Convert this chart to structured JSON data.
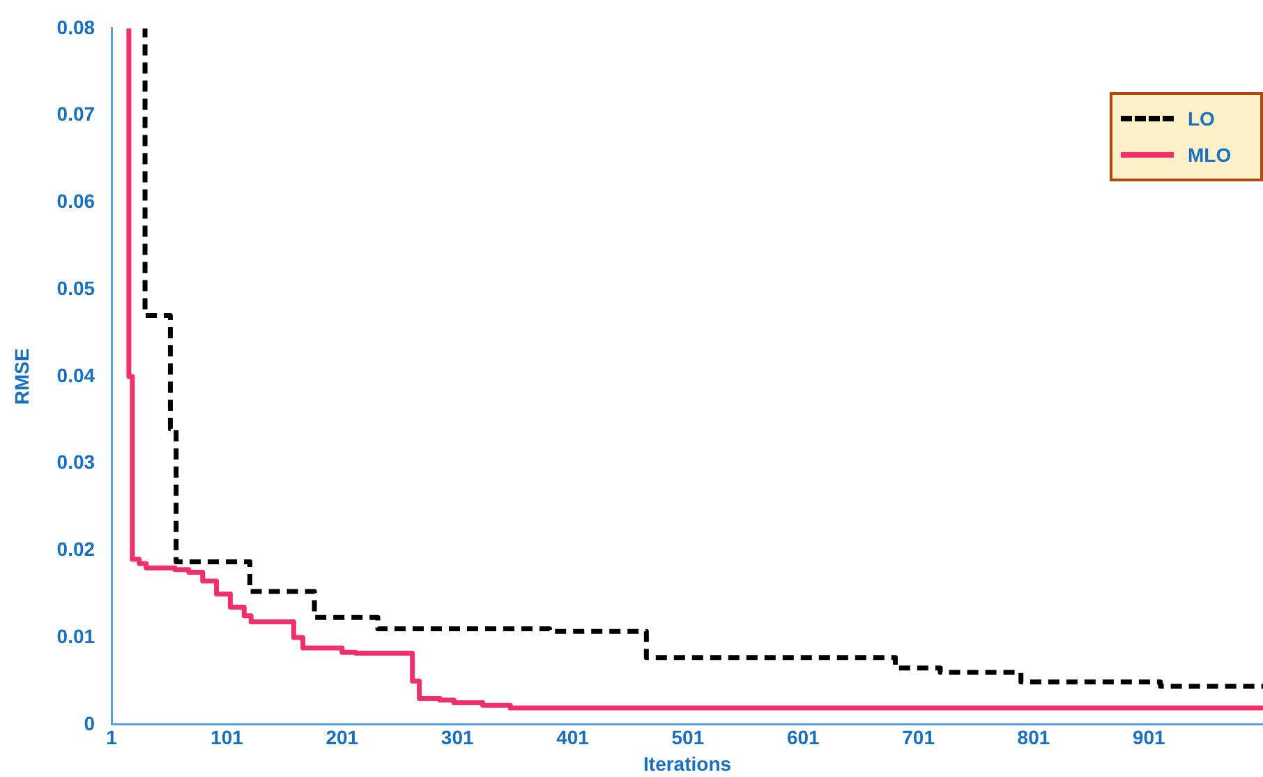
{
  "chart_data": {
    "type": "step",
    "xlabel": "Iterations",
    "ylabel": "RMSE",
    "xlim": [
      1,
      1000
    ],
    "xticks": [
      1,
      101,
      201,
      301,
      401,
      501,
      601,
      701,
      801,
      901
    ],
    "ylim": [
      0,
      0.08
    ],
    "yticks": [
      0,
      0.01,
      0.02,
      0.03,
      0.04,
      0.05,
      0.06,
      0.07,
      0.08
    ],
    "grid": false,
    "legend": "top right",
    "series": [
      {
        "name": "LO",
        "color": "#000000",
        "line_style": "dashed",
        "x": [
          28,
          30,
          50,
          52,
          57,
          121,
          177,
          232,
          381,
          465,
          681,
          720,
          790,
          911,
          1000
        ],
        "values": [
          0.08,
          0.047,
          0.047,
          0.034,
          0.0187,
          0.0153,
          0.0123,
          0.011,
          0.0107,
          0.0077,
          0.0065,
          0.006,
          0.0049,
          0.0044,
          0.0044
        ]
      },
      {
        "name": "MLO",
        "color": "#f0306a",
        "line_style": "solid",
        "x": [
          14,
          16,
          19,
          25,
          31,
          56,
          68,
          80,
          92,
          104,
          116,
          122,
          156,
          159,
          167,
          189,
          201,
          213,
          257,
          262,
          268,
          286,
          298,
          323,
          347,
          1000
        ],
        "values": [
          0.08,
          0.04,
          0.019,
          0.0185,
          0.018,
          0.0178,
          0.0175,
          0.0165,
          0.015,
          0.0135,
          0.0125,
          0.0118,
          0.0118,
          0.01,
          0.0088,
          0.0088,
          0.0083,
          0.0082,
          0.0082,
          0.005,
          0.003,
          0.0028,
          0.0025,
          0.0022,
          0.0019,
          0.0018
        ]
      }
    ]
  }
}
